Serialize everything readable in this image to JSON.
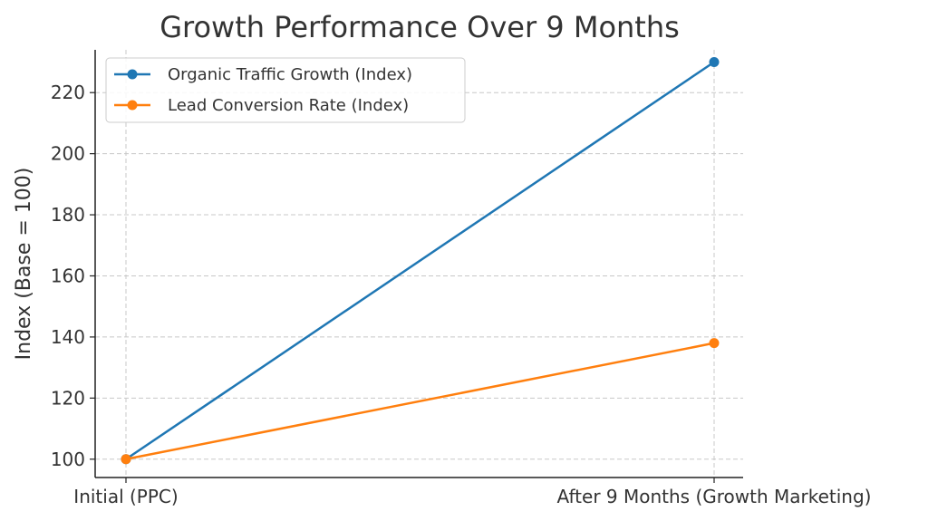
{
  "chart_data": {
    "type": "line",
    "title": "Growth Performance Over 9 Months",
    "xlabel": "",
    "ylabel": "Index (Base = 100)",
    "categories": [
      "Initial (PPC)",
      "After 9 Months (Growth Marketing)"
    ],
    "series": [
      {
        "name": "Organic Traffic Growth (Index)",
        "values": [
          100,
          230
        ],
        "color": "#1f77b4"
      },
      {
        "name": "Lead Conversion Rate (Index)",
        "values": [
          100,
          138
        ],
        "color": "#ff7f0e"
      }
    ],
    "yticks": [
      100,
      120,
      140,
      160,
      180,
      200,
      220
    ],
    "ylim": [
      94,
      234
    ],
    "grid": true,
    "legend_position": "top-left"
  }
}
